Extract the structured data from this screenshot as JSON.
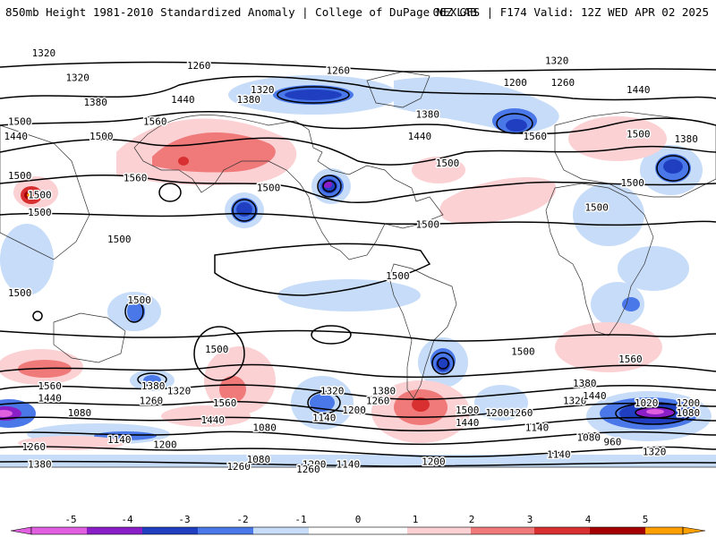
{
  "header": {
    "title_left": "850mb Height 1981-2010 Standardized Anomaly | College of DuPage NEXLAB",
    "title_right": "06Z GFS | F174 Valid: 12Z WED APR 02 2025"
  },
  "colors": {
    "neg5": "#e060e0",
    "neg4": "#8a1fc8",
    "neg3": "#1f3fc0",
    "neg2": "#4a78e8",
    "neg1": "#c6dcf8",
    "zero": "#ffffff",
    "pos1": "#fbd1d4",
    "pos2": "#f07a7a",
    "pos3": "#d83030",
    "pos4": "#a40000",
    "pos5": "#ffa000"
  },
  "colorbar": {
    "ticks": [
      "-5",
      "-4",
      "-3",
      "-2",
      "-1",
      "0",
      "1",
      "2",
      "3",
      "4",
      "5"
    ]
  },
  "contour_labels": [
    {
      "text": "1320",
      "lon": -158,
      "lat": 83
    },
    {
      "text": "1320",
      "lon": -141,
      "lat": 73
    },
    {
      "text": "1260",
      "lon": -80,
      "lat": 78
    },
    {
      "text": "1260",
      "lon": -10,
      "lat": 76
    },
    {
      "text": "1320",
      "lon": 100,
      "lat": 80
    },
    {
      "text": "1260",
      "lon": 103,
      "lat": 71
    },
    {
      "text": "1200",
      "lon": 79,
      "lat": 71
    },
    {
      "text": "1320",
      "lon": -48,
      "lat": 68
    },
    {
      "text": "1440",
      "lon": 141,
      "lat": 68
    },
    {
      "text": "1380",
      "lon": -132,
      "lat": 63
    },
    {
      "text": "1440",
      "lon": -88,
      "lat": 64
    },
    {
      "text": "1380",
      "lon": -55,
      "lat": 64
    },
    {
      "text": "1380",
      "lon": 35,
      "lat": 58
    },
    {
      "text": "1560",
      "lon": -102,
      "lat": 55
    },
    {
      "text": "1500",
      "lon": -170,
      "lat": 55
    },
    {
      "text": "1440",
      "lon": -172,
      "lat": 49
    },
    {
      "text": "1500",
      "lon": -129,
      "lat": 49
    },
    {
      "text": "1440",
      "lon": 31,
      "lat": 49
    },
    {
      "text": "1560",
      "lon": 89,
      "lat": 49
    },
    {
      "text": "1500",
      "lon": 141,
      "lat": 50
    },
    {
      "text": "1380",
      "lon": 165,
      "lat": 48
    },
    {
      "text": "1500",
      "lon": 45,
      "lat": 38
    },
    {
      "text": "1560",
      "lon": -112,
      "lat": 32
    },
    {
      "text": "1500",
      "lon": -45,
      "lat": 28
    },
    {
      "text": "1500",
      "lon": -170,
      "lat": 33
    },
    {
      "text": "1500",
      "lon": -160,
      "lat": 25
    },
    {
      "text": "1500",
      "lon": -160,
      "lat": 18
    },
    {
      "text": "1500",
      "lon": 138,
      "lat": 30
    },
    {
      "text": "1500",
      "lon": 120,
      "lat": 20
    },
    {
      "text": "1500",
      "lon": 35,
      "lat": 13
    },
    {
      "text": "1500",
      "lon": -120,
      "lat": 7
    },
    {
      "text": "1500",
      "lon": 20,
      "lat": -8
    },
    {
      "text": "1500",
      "lon": -170,
      "lat": -15
    },
    {
      "text": "1500",
      "lon": -110,
      "lat": -18
    },
    {
      "text": "1500",
      "lon": -71,
      "lat": -38
    },
    {
      "text": "1500",
      "lon": 83,
      "lat": -39
    },
    {
      "text": "1560",
      "lon": 137,
      "lat": -42
    },
    {
      "text": "1560",
      "lon": -155,
      "lat": -53
    },
    {
      "text": "1440",
      "lon": -155,
      "lat": -58
    },
    {
      "text": "1380",
      "lon": -103,
      "lat": -53
    },
    {
      "text": "1320",
      "lon": -90,
      "lat": -55
    },
    {
      "text": "1260",
      "lon": -104,
      "lat": -59
    },
    {
      "text": "1560",
      "lon": -67,
      "lat": -60
    },
    {
      "text": "1440",
      "lon": -73,
      "lat": -67
    },
    {
      "text": "1320",
      "lon": -13,
      "lat": -55
    },
    {
      "text": "1380",
      "lon": 13,
      "lat": -55
    },
    {
      "text": "1260",
      "lon": 10,
      "lat": -59
    },
    {
      "text": "1200",
      "lon": -2,
      "lat": -63
    },
    {
      "text": "1140",
      "lon": -17,
      "lat": -66
    },
    {
      "text": "1080",
      "lon": -140,
      "lat": -64
    },
    {
      "text": "1080",
      "lon": -47,
      "lat": -70
    },
    {
      "text": "1500",
      "lon": 55,
      "lat": -63
    },
    {
      "text": "1440",
      "lon": 55,
      "lat": -68
    },
    {
      "text": "1200",
      "lon": 70,
      "lat": -64
    },
    {
      "text": "1260",
      "lon": 82,
      "lat": -64
    },
    {
      "text": "1140",
      "lon": 90,
      "lat": -70
    },
    {
      "text": "1380",
      "lon": 114,
      "lat": -52
    },
    {
      "text": "1320",
      "lon": 109,
      "lat": -59
    },
    {
      "text": "1440",
      "lon": 119,
      "lat": -57
    },
    {
      "text": "1020",
      "lon": 145,
      "lat": -60
    },
    {
      "text": "1200",
      "lon": 166,
      "lat": -60
    },
    {
      "text": "1080",
      "lon": 166,
      "lat": -64
    },
    {
      "text": "960",
      "lon": 128,
      "lat": -76
    },
    {
      "text": "1080",
      "lon": 116,
      "lat": -74
    },
    {
      "text": "1320",
      "lon": 149,
      "lat": -80
    },
    {
      "text": "1140",
      "lon": 101,
      "lat": -81
    },
    {
      "text": "1200",
      "lon": 38,
      "lat": -84
    },
    {
      "text": "1260",
      "lon": -60,
      "lat": -86
    },
    {
      "text": "1080",
      "lon": -50,
      "lat": -83
    },
    {
      "text": "1200",
      "lon": -22,
      "lat": -85
    },
    {
      "text": "1140",
      "lon": -5,
      "lat": -85
    },
    {
      "text": "1260",
      "lon": -163,
      "lat": -78
    },
    {
      "text": "1200",
      "lon": -97,
      "lat": -77
    },
    {
      "text": "1140",
      "lon": -120,
      "lat": -75
    },
    {
      "text": "1380",
      "lon": -160,
      "lat": -85
    },
    {
      "text": "1260",
      "lon": -25,
      "lat": -87
    }
  ]
}
